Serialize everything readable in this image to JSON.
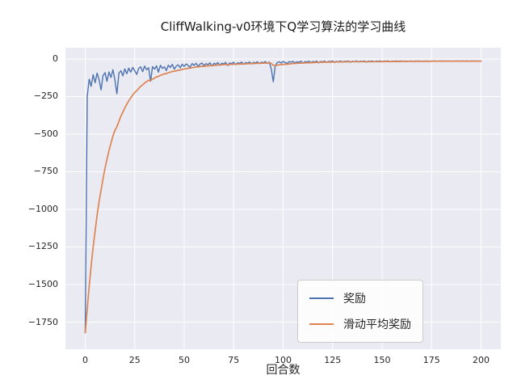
{
  "chart_data": {
    "type": "line",
    "title": "CliffWalking-v0环境下Q学习算法的学习曲线",
    "xlabel": "回合数",
    "ylabel": "",
    "x_is_episode_index": true,
    "xlim": [
      -10,
      210
    ],
    "ylim": [
      -1930,
      75
    ],
    "xticks": [
      0,
      25,
      50,
      75,
      100,
      125,
      150,
      175,
      200
    ],
    "xtick_labels": [
      "0",
      "25",
      "50",
      "75",
      "100",
      "125",
      "150",
      "175",
      "200"
    ],
    "yticks": [
      0,
      -250,
      -500,
      -750,
      -1000,
      -1250,
      -1500,
      -1750
    ],
    "ytick_labels": [
      "0",
      "−250",
      "−500",
      "−750",
      "−1000",
      "−1250",
      "−1500",
      "−1750"
    ],
    "grid": true,
    "plot_background": "#eaeaf2",
    "grid_color": "#ffffff",
    "legend": {
      "position": "lower right",
      "entries": [
        "奖励",
        "滑动平均奖励"
      ]
    },
    "series": [
      {
        "name": "奖励",
        "color": "#4c72b0",
        "values": [
          -1821,
          -248,
          -134,
          -182,
          -105,
          -158,
          -94,
          -139,
          -205,
          -112,
          -91,
          -149,
          -86,
          -123,
          -72,
          -141,
          -232,
          -95,
          -78,
          -112,
          -66,
          -98,
          -61,
          -88,
          -56,
          -79,
          -103,
          -63,
          -52,
          -84,
          -47,
          -72,
          -58,
          -148,
          -51,
          -67,
          -46,
          -88,
          -42,
          -63,
          -52,
          -77,
          -41,
          -57,
          -36,
          -68,
          -47,
          -39,
          -59,
          -35,
          -49,
          -33,
          -44,
          -55,
          -31,
          -42,
          -29,
          -51,
          -34,
          -27,
          -45,
          -31,
          -38,
          -26,
          -47,
          -29,
          -35,
          -24,
          -41,
          -28,
          -33,
          -23,
          -44,
          -27,
          -31,
          -22,
          -38,
          -26,
          -29,
          -21,
          -35,
          -24,
          -28,
          -20,
          -33,
          -23,
          -26,
          -19,
          -31,
          -22,
          -25,
          -18,
          -29,
          -21,
          -66,
          -152,
          -47,
          -24,
          -19,
          -27,
          -17,
          -23,
          -30,
          -18,
          -21,
          -16,
          -26,
          -19,
          -22,
          -15,
          -28,
          -18,
          -21,
          -15,
          -24,
          -17,
          -20,
          -14,
          -26,
          -17,
          -19,
          -14,
          -23,
          -16,
          -18,
          -13,
          -24,
          -16,
          -19,
          -13,
          -21,
          -15,
          -17,
          -13,
          -22,
          -15,
          -18,
          -13,
          -20,
          -14,
          -17,
          -13,
          -21,
          -14,
          -16,
          -13,
          -19,
          -14,
          -16,
          -13,
          -18,
          -14,
          -15,
          -13,
          -19,
          -14,
          -16,
          -13,
          -17,
          -13,
          -15,
          -13,
          -18,
          -14,
          -15,
          -13,
          -17,
          -13,
          -14,
          -13,
          -16,
          -13,
          -15,
          -13,
          -17,
          -13,
          -14,
          -13,
          -16,
          -13,
          -14,
          -13,
          -15,
          -13,
          -14,
          -13,
          -16,
          -13,
          -14,
          -13,
          -15,
          -13,
          -14,
          -13,
          -15,
          -13,
          -14,
          -13,
          -15,
          -13,
          -14
        ]
      },
      {
        "name": "滑动平均奖励",
        "color": "#dd8452",
        "values": [
          -1821,
          -1664,
          -1511,
          -1378,
          -1251,
          -1142,
          -1037,
          -947,
          -873,
          -797,
          -726,
          -668,
          -610,
          -561,
          -512,
          -475,
          -451,
          -415,
          -381,
          -354,
          -325,
          -302,
          -278,
          -259,
          -239,
          -223,
          -211,
          -196,
          -182,
          -172,
          -160,
          -151,
          -142,
          -143,
          -134,
          -127,
          -119,
          -116,
          -109,
          -104,
          -99,
          -97,
          -91,
          -88,
          -83,
          -82,
          -79,
          -75,
          -73,
          -69,
          -67,
          -64,
          -62,
          -61,
          -58,
          -56,
          -53,
          -53,
          -51,
          -49,
          -49,
          -47,
          -46,
          -44,
          -44,
          -43,
          -42,
          -40,
          -40,
          -39,
          -38,
          -37,
          -38,
          -37,
          -36,
          -35,
          -35,
          -34,
          -34,
          -33,
          -33,
          -32,
          -32,
          -31,
          -31,
          -30,
          -30,
          -29,
          -29,
          -28,
          -28,
          -27,
          -27,
          -26,
          -30,
          -42,
          -43,
          -41,
          -39,
          -38,
          -36,
          -35,
          -35,
          -33,
          -32,
          -30,
          -30,
          -29,
          -28,
          -27,
          -27,
          -26,
          -26,
          -25,
          -25,
          -24,
          -24,
          -23,
          -23,
          -22,
          -22,
          -21,
          -21,
          -21,
          -21,
          -20,
          -20,
          -20,
          -20,
          -19,
          -19,
          -19,
          -19,
          -18,
          -18,
          -18,
          -18,
          -18,
          -18,
          -18,
          -18,
          -18,
          -18,
          -18,
          -18,
          -18,
          -18,
          -18,
          -18,
          -18,
          -18,
          -17,
          -17,
          -17,
          -17,
          -17,
          -17,
          -17,
          -17,
          -17,
          -16,
          -16,
          -16,
          -16,
          -16,
          -16,
          -16,
          -16,
          -16,
          -16,
          -16,
          -16,
          -16,
          -16,
          -16,
          -15,
          -15,
          -15,
          -15,
          -15,
          -15,
          -15,
          -15,
          -15,
          -15,
          -15,
          -15,
          -15,
          -15,
          -15,
          -15,
          -15,
          -15,
          -15,
          -15,
          -15,
          -15,
          -15,
          -15,
          -15,
          -15
        ]
      }
    ]
  }
}
